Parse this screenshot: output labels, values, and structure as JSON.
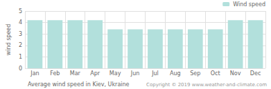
{
  "chart_data": {
    "type": "bar",
    "categories": [
      "Jan",
      "Feb",
      "Mar",
      "Apr",
      "May",
      "Jun",
      "Jul",
      "Aug",
      "Sep",
      "Oct",
      "Nov",
      "Dec"
    ],
    "series": [
      {
        "name": "Wind speed",
        "color": "#b2e0dc",
        "values": [
          4.2,
          4.2,
          4.2,
          4.2,
          3.4,
          3.4,
          3.4,
          3.4,
          3.4,
          3.4,
          4.2,
          4.2
        ]
      }
    ],
    "ylabel": "wind speed",
    "xlabel": "Average wind speed in Kiev, Ukraine",
    "annotations": [
      "Copyright © 2019 www.weather-and-climate.com"
    ],
    "ylim": [
      0,
      5
    ],
    "yticks": [
      0,
      1,
      2,
      3,
      4,
      5
    ],
    "grid": true,
    "legend": "upper right"
  }
}
